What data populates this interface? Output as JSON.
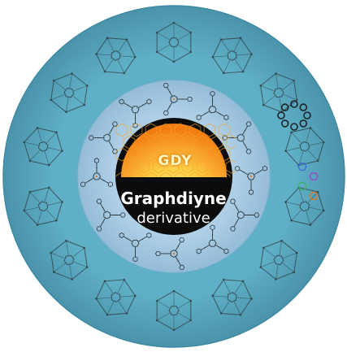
{
  "center": {
    "badge": "GDY",
    "title_line1": "Graphdiyne",
    "title_line2": "derivative"
  },
  "colors": {
    "outer_ring": "#5ba8bf",
    "outer_ring_edge": "#3f8aa3",
    "middle_ring": "#a7c9e2",
    "inner_core": "#0c0c0c",
    "glow_core": "#ffe27a",
    "glow_edge": "#f27c12",
    "molecule_line": "#2d3a3f",
    "accent_orange": "#e07a28",
    "accent_blue": "#3b6fd8",
    "accent_purple": "#9a49c8",
    "accent_green": "#3fb06a"
  }
}
